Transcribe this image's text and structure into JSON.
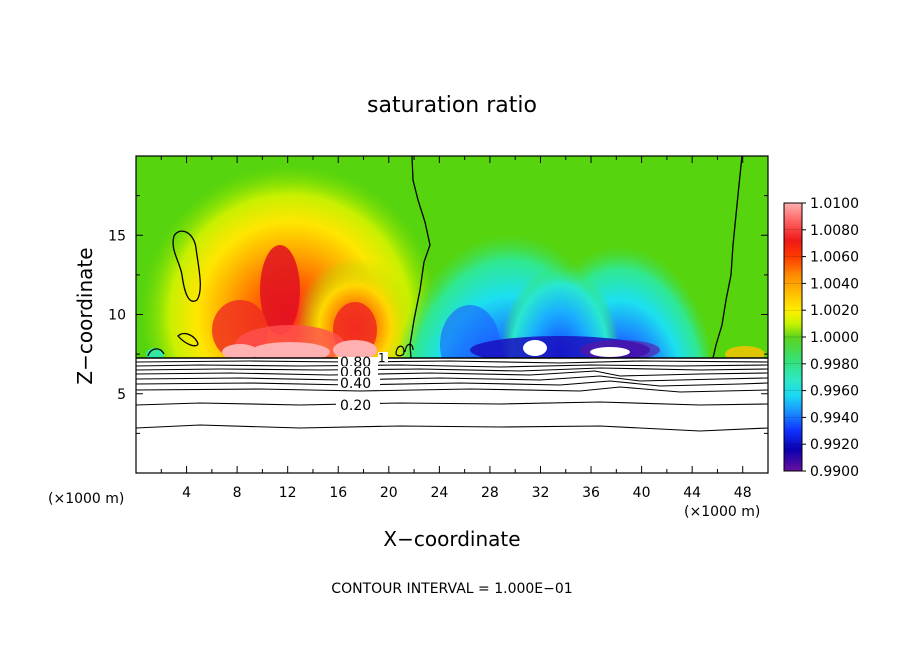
{
  "chart_data": {
    "type": "heatmap",
    "title": "saturation ratio",
    "xlabel": "X−coordinate",
    "ylabel": "Z−coordinate",
    "x_unit_left": "(×1000 m)",
    "x_unit_right": "(×1000 m)",
    "xlim": [
      0,
      50
    ],
    "ylim": [
      0,
      20
    ],
    "x_ticks": [
      4,
      8,
      12,
      16,
      20,
      24,
      28,
      32,
      36,
      40,
      44,
      48
    ],
    "y_ticks": [
      5,
      10,
      15
    ],
    "colorbar": {
      "min": 0.99,
      "max": 1.01,
      "labels": [
        "1.0100",
        "1.0080",
        "1.0060",
        "1.0040",
        "1.0020",
        "1.0000",
        "0.9980",
        "0.9960",
        "0.9940",
        "0.9920",
        "0.9900"
      ],
      "colors": [
        "#ffb0b0",
        "#ff7070",
        "#f02020",
        "#ff2a00",
        "#ff7f00",
        "#ffb200",
        "#ffe400",
        "#e6ff00",
        "#a8f000",
        "#4cd61e",
        "#35e27a",
        "#2ee8c6",
        "#1ce6ee",
        "#1aa8ff",
        "#145cff",
        "#0a1cf0",
        "#0a00b0",
        "#6a0aa0"
      ]
    },
    "contour_labels": [
      "0.80",
      "0.60",
      "0.40",
      "0.20"
    ],
    "contour_level_1": "1",
    "contour_interval_text": "CONTOUR INTERVAL = 1.000E−01"
  }
}
